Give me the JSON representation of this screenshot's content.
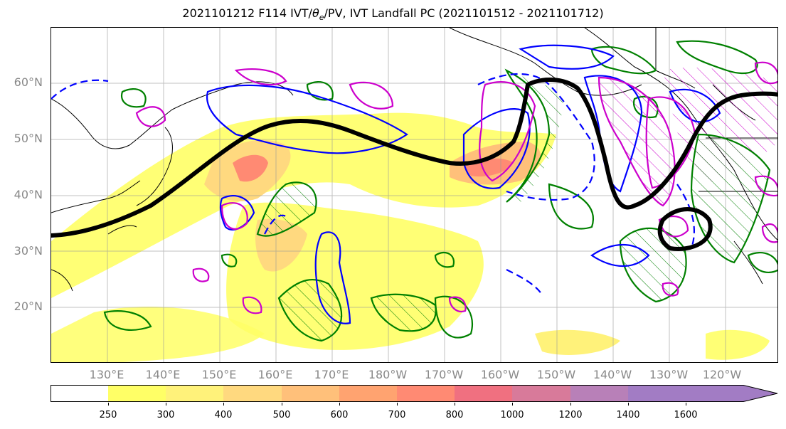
{
  "title_prefix": "2021101212 F114 IVT/",
  "title_theta": "θ",
  "title_theta_sub": "e",
  "title_suffix": "/PV, IVT Landfall PC (2021101512 - 2021101712)",
  "lat_labels": [
    "60°N",
    "50°N",
    "40°N",
    "30°N",
    "20°N"
  ],
  "lon_labels": [
    "130°E",
    "140°E",
    "150°E",
    "160°E",
    "170°E",
    "180°W",
    "170°W",
    "160°W",
    "150°W",
    "140°W",
    "130°W",
    "120°W"
  ],
  "colorbar": {
    "levels": [
      "250",
      "300",
      "400",
      "500",
      "600",
      "700",
      "800",
      "1000",
      "1200",
      "1400",
      "1600"
    ],
    "colors": [
      "#ffffff",
      "#ffff66",
      "#fff27a",
      "#ffd97f",
      "#ffc07a",
      "#ffa370",
      "#ff8a73",
      "#f07080",
      "#d87a9a",
      "#b880b8",
      "#a27cc4"
    ]
  },
  "legend": {
    "ivt_fill_color": "#ff9966",
    "theta_e_color": "#0000ff",
    "pv_color": "#008000",
    "landfall_pc_color": "#cc00cc",
    "jet_axis_color": "#000000"
  }
}
